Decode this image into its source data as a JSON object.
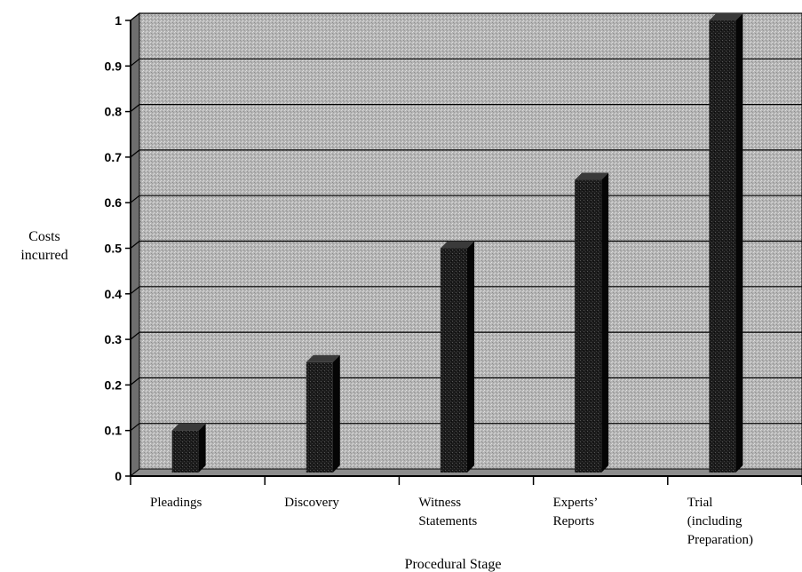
{
  "chart_data": {
    "type": "bar",
    "title": "",
    "xlabel": "Procedural Stage",
    "ylabel": [
      "Costs",
      "incurred"
    ],
    "categories": [
      [
        "Pleadings"
      ],
      [
        "Discovery"
      ],
      [
        "Witness",
        "Statements"
      ],
      [
        "Experts’",
        "Reports"
      ],
      [
        "Trial",
        "(including",
        "Preparation)"
      ]
    ],
    "values": [
      0.1,
      0.25,
      0.5,
      0.65,
      1.0
    ],
    "ylim": [
      0,
      1
    ],
    "yticks": [
      "0",
      "0.1",
      "0.2",
      "0.3",
      "0.4",
      "0.5",
      "0.6",
      "0.7",
      "0.8",
      "0.9",
      "1"
    ],
    "grid": true,
    "legend": "none",
    "colors": {
      "plot_background": "#b4b4b4",
      "wall_side": "#6e6e6e",
      "floor": "#8c8c8c",
      "bar_front": "#1c1c1c",
      "bar_side": "#050505",
      "bar_top": "#3a3a3a",
      "gridline": "#000000"
    }
  }
}
